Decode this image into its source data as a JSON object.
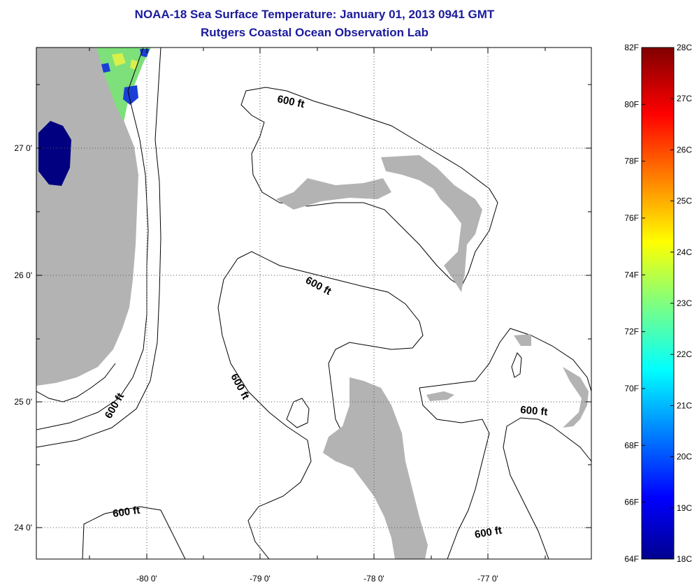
{
  "title": "NOAA-18 Sea Surface Temperature:  January 01, 2013 0941 GMT",
  "subtitle": "Rutgers Coastal Ocean Observation Lab",
  "map": {
    "lon_labels": [
      "-80 0'",
      "-79 0'",
      "-78 0'",
      "-77 0'"
    ],
    "lat_labels": [
      "27 0'",
      "26 0'",
      "25 0'",
      "24 0'"
    ],
    "contour_labels": [
      "600 ft",
      "600 ft",
      "600 ft",
      "600 ft",
      "600 ft",
      "600 ft"
    ],
    "land_color": "#b3b3b3",
    "no_data_color": "#000080"
  },
  "colorbar": {
    "fahrenheit_labels": [
      "82F",
      "80F",
      "78F",
      "76F",
      "74F",
      "72F",
      "70F",
      "68F",
      "66F",
      "64F"
    ],
    "celsius_labels": [
      "28C",
      "27C",
      "26C",
      "25C",
      "24C",
      "23C",
      "22C",
      "21C",
      "20C",
      "19C",
      "18C"
    ],
    "range_f": [
      64,
      82
    ],
    "range_c": [
      18,
      28
    ]
  }
}
